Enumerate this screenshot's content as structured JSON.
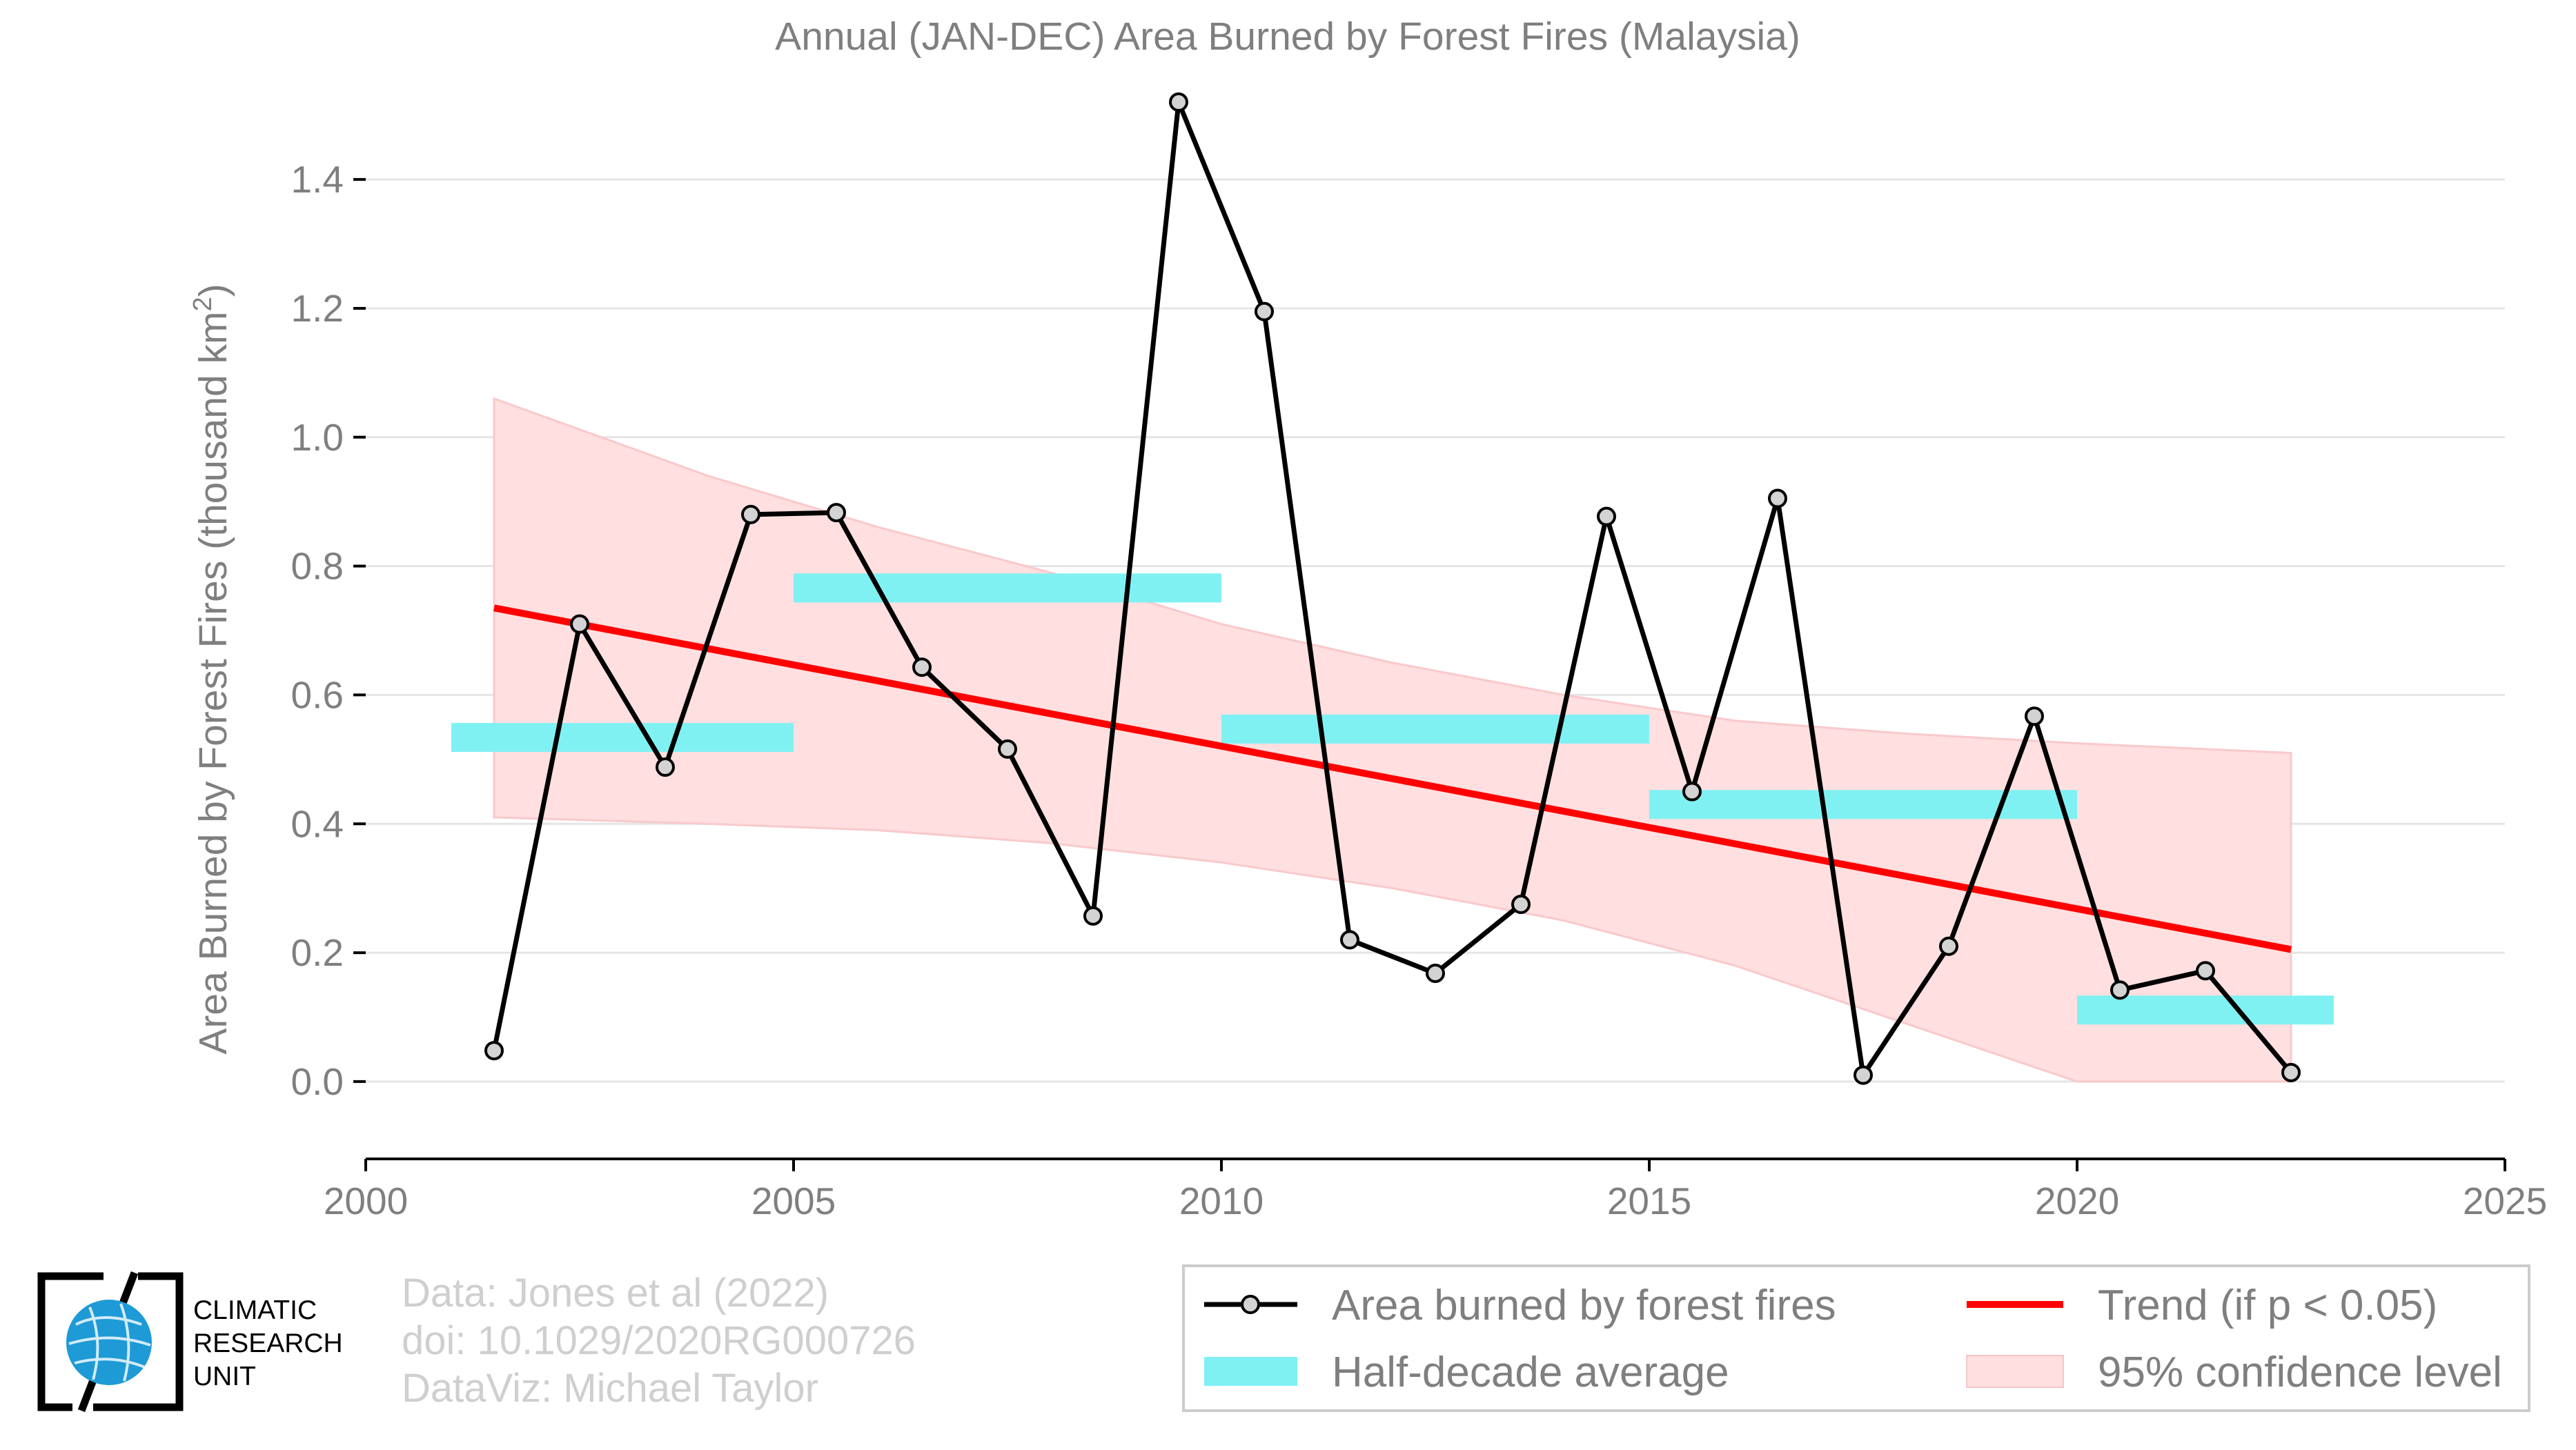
{
  "chart_data": {
    "type": "line",
    "title": "Annual (JAN-DEC) Area Burned by Forest Fires (Malaysia)",
    "ylabel": "Area Burned by Forest Fires (thousand km",
    "ylabel_sup": "2",
    "ylabel_end": ")",
    "xlabel": "",
    "xlim": [
      2000,
      2025
    ],
    "ylim": [
      -0.12,
      1.55
    ],
    "x_ticks": [
      "2000",
      "2005",
      "2010",
      "2015",
      "2020",
      "2025"
    ],
    "y_ticks": [
      "0.0",
      "0.2",
      "0.4",
      "0.6",
      "0.8",
      "1.0",
      "1.2",
      "1.4"
    ],
    "grid": "horizontal",
    "series": [
      {
        "name": "Area burned by forest fires",
        "type": "line-marker",
        "color": "#000000",
        "marker_fill": "#d3d3d3",
        "x": [
          2001.5,
          2002.5,
          2003.5,
          2004.5,
          2005.5,
          2006.5,
          2007.5,
          2008.5,
          2009.5,
          2010.5,
          2011.5,
          2012.5,
          2013.5,
          2014.5,
          2015.5,
          2016.5,
          2017.5,
          2018.5,
          2019.5,
          2020.5,
          2021.5,
          2022.5
        ],
        "y": [
          0.048,
          0.71,
          0.488,
          0.88,
          0.883,
          0.643,
          0.516,
          0.257,
          1.52,
          1.195,
          0.22,
          0.168,
          0.275,
          0.877,
          0.45,
          0.905,
          0.01,
          0.21,
          0.567,
          0.142,
          0.172,
          0.014
        ]
      },
      {
        "name": "Half-decade average",
        "type": "segments",
        "color": "#80f1f3",
        "segments": [
          {
            "x0": 2001,
            "x1": 2005,
            "y": 0.534
          },
          {
            "x0": 2005,
            "x1": 2010,
            "y": 0.766
          },
          {
            "x0": 2010,
            "x1": 2015,
            "y": 0.547
          },
          {
            "x0": 2015,
            "x1": 2020,
            "y": 0.43
          },
          {
            "x0": 2020,
            "x1": 2023,
            "y": 0.111
          }
        ]
      },
      {
        "name": "Trend (if p < 0.05)",
        "type": "line",
        "color": "#ff0000",
        "x": [
          2001.5,
          2022.5
        ],
        "y": [
          0.735,
          0.205
        ]
      },
      {
        "name": "95% confidence level",
        "type": "band",
        "color": "#ffdfe0",
        "x": [
          2001.5,
          2004,
          2006,
          2008,
          2010,
          2012,
          2014,
          2016,
          2018,
          2020,
          2022.5
        ],
        "upper": [
          1.06,
          0.94,
          0.86,
          0.79,
          0.71,
          0.65,
          0.6,
          0.56,
          0.54,
          0.525,
          0.51
        ],
        "lower": [
          0.41,
          0.4,
          0.39,
          0.37,
          0.34,
          0.3,
          0.25,
          0.18,
          0.09,
          0.0,
          0.0
        ]
      }
    ],
    "legend": {
      "position": "bottom-right",
      "items": [
        {
          "label": "Area burned by forest fires",
          "kind": "line-marker"
        },
        {
          "label": "Trend (if p < 0.05)",
          "kind": "line"
        },
        {
          "label": "Half-decade average",
          "kind": "bar"
        },
        {
          "label": "95% confidence level",
          "kind": "band"
        }
      ]
    }
  },
  "credits": {
    "line1": "Data: Jones et al (2022)",
    "line2": "doi: 10.1029/2020RG000726",
    "line3": "DataViz: Michael Taylor"
  },
  "logo": {
    "line1": "CLIMATIC",
    "line2": "RESEARCH",
    "line3": "UNIT",
    "icon": "globe-icon",
    "globe_color": "#1e9ad6"
  }
}
